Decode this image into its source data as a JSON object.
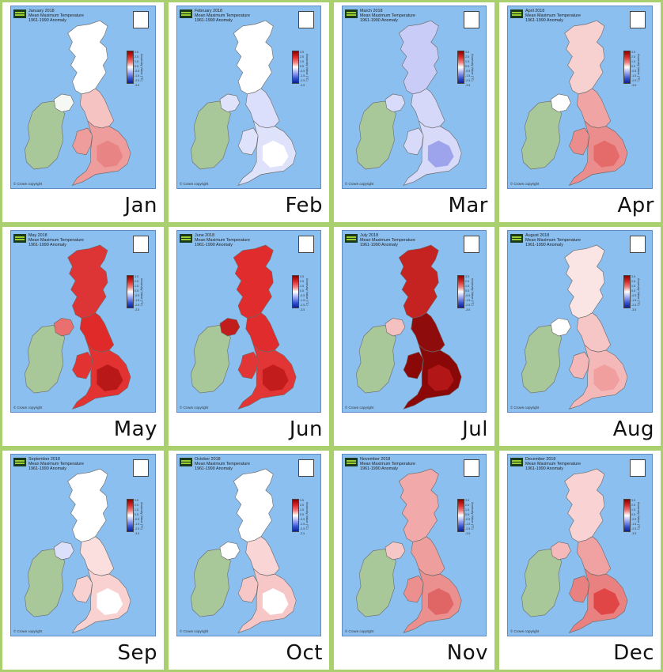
{
  "panels": [
    {
      "month_label": "Jan",
      "header": [
        "January 2018",
        "Mean Maximum Temperature",
        "1961-1990 Anomaly"
      ],
      "copyright": "© Crown copyright",
      "colors": {
        "scotland": "#ffffff",
        "ni": "#f6f9f3",
        "north": "#f6c3c3",
        "south": "#ef9c9c",
        "hot": "#e98484"
      }
    },
    {
      "month_label": "Feb",
      "header": [
        "February 2018",
        "Mean Maximum Temperature",
        "1961-1990 Anomaly"
      ],
      "copyright": "© Crown copyright",
      "colors": {
        "scotland": "#ffffff",
        "ni": "#dfe2fb",
        "north": "#dcdffb",
        "south": "#dfe2fb",
        "hot": "#ffffff"
      }
    },
    {
      "month_label": "Mar",
      "header": [
        "March 2018",
        "Mean Maximum Temperature",
        "1961-1990 Anomaly"
      ],
      "copyright": "© Crown copyright",
      "colors": {
        "scotland": "#c9ccf6",
        "ni": "#d8dcfa",
        "north": "#d5d8f9",
        "south": "#d7daf9",
        "hot": "#9ea4ec"
      }
    },
    {
      "month_label": "Apr",
      "header": [
        "April 2018",
        "Mean Maximum Temperature",
        "1961-1990 Anomaly"
      ],
      "copyright": "© Crown copyright",
      "colors": {
        "scotland": "#f7d0d0",
        "ni": "#ffffff",
        "north": "#f0a4a4",
        "south": "#ec8d8d",
        "hot": "#e56a6a"
      }
    },
    {
      "month_label": "May",
      "header": [
        "May 2018",
        "Mean Maximum Temperature",
        "1961-1990 Anomaly"
      ],
      "copyright": "© Crown copyright",
      "colors": {
        "scotland": "#dd3535",
        "ni": "#ea6f6f",
        "north": "#e02a2a",
        "south": "#e23232",
        "hot": "#b81818"
      }
    },
    {
      "month_label": "Jun",
      "header": [
        "June 2018",
        "Mean Maximum Temperature",
        "1961-1990 Anomaly"
      ],
      "copyright": "© Crown copyright",
      "colors": {
        "scotland": "#e02c2c",
        "ni": "#c11d1d",
        "north": "#e02c2c",
        "south": "#e23535",
        "hot": "#c21c1c"
      }
    },
    {
      "month_label": "Jul",
      "header": [
        "July 2018",
        "Mean Maximum Temperature",
        "1961-1990 Anomaly"
      ],
      "copyright": "© Crown copyright",
      "colors": {
        "scotland": "#c52222",
        "ni": "#f5c0c0",
        "north": "#8f0c0c",
        "south": "#8a0808",
        "hot": "#b31616"
      }
    },
    {
      "month_label": "Aug",
      "header": [
        "August 2018",
        "Mean Maximum Temperature",
        "1961-1990 Anomaly"
      ],
      "copyright": "© Crown copyright",
      "colors": {
        "scotland": "#fbe4e4",
        "ni": "#ffffff",
        "north": "#f6c6c6",
        "south": "#f4b8b8",
        "hot": "#f19e9e"
      }
    },
    {
      "month_label": "Sep",
      "header": [
        "September 2018",
        "Mean Maximum Temperature",
        "1961-1990 Anomaly"
      ],
      "copyright": "© Crown copyright",
      "colors": {
        "scotland": "#ffffff",
        "ni": "#dde0fa",
        "north": "#fbdede",
        "south": "#f9d1d1",
        "hot": "#ffffff"
      }
    },
    {
      "month_label": "Oct",
      "header": [
        "October 2018",
        "Mean Maximum Temperature",
        "1961-1990 Anomaly"
      ],
      "copyright": "© Crown copyright",
      "colors": {
        "scotland": "#ffffff",
        "ni": "#ffffff",
        "north": "#f9d5d5",
        "south": "#f7c6c6",
        "hot": "#ffffff"
      }
    },
    {
      "month_label": "Nov",
      "header": [
        "November 2018",
        "Mean Maximum Temperature",
        "1961-1990 Anomaly"
      ],
      "copyright": "© Crown copyright",
      "colors": {
        "scotland": "#f1a9a9",
        "ni": "#f6c7c7",
        "north": "#ef9e9e",
        "south": "#ec8f8f",
        "hot": "#e06565"
      }
    },
    {
      "month_label": "Dec",
      "header": [
        "December 2018",
        "Mean Maximum Temperature",
        "1961-1990 Anomaly"
      ],
      "copyright": "© Crown copyright",
      "colors": {
        "scotland": "#f9d3d3",
        "ni": "#f5b9b9",
        "north": "#f0a2a2",
        "south": "#ea8181",
        "hot": "#e04646"
      }
    }
  ],
  "legend_ticks": [
    "3.5",
    "2.5",
    "1.5",
    "0.5",
    "-0.5",
    "-1.5",
    "-2.5",
    "-3.5"
  ],
  "legend_units": "Anomaly Value (°C)",
  "colors": {
    "frame": "#a9cf6f",
    "sea": "#8bbff0",
    "ireland": "#a9c89a",
    "border": "#6a6a6a"
  }
}
